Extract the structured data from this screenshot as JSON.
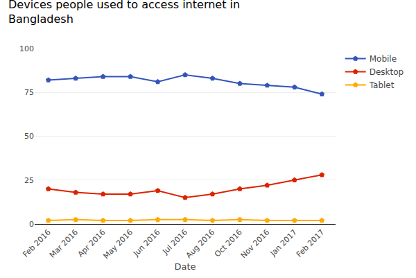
{
  "chart_data": {
    "type": "line",
    "title": "Devices people used to access internet in\nBangladesh",
    "xlabel": "Date",
    "categories": [
      "Feb 2016",
      "Mar 2016",
      "Apr 2016",
      "May 2016",
      "Jun 2016",
      "Jul 2016",
      "Aug 2016",
      "Oct 2016",
      "Nov 2016",
      "Jan 2017",
      "Feb 2017"
    ],
    "series": [
      {
        "name": "Mobile",
        "color": "#3355bb",
        "values": [
          82,
          83,
          84,
          84,
          81,
          85,
          83,
          80,
          79,
          78,
          74
        ]
      },
      {
        "name": "Desktop",
        "color": "#dd2200",
        "values": [
          20,
          18,
          17,
          17,
          19,
          15,
          17,
          20,
          22,
          25,
          28
        ]
      },
      {
        "name": "Tablet",
        "color": "#ffaa00",
        "values": [
          2,
          2.5,
          2,
          2,
          2.5,
          2.5,
          2,
          2.5,
          2,
          2,
          2
        ]
      }
    ],
    "marker": "pentagon",
    "ylim": [
      0,
      100
    ],
    "yticks": [
      0,
      25,
      50,
      75,
      100
    ],
    "grid": true,
    "legend": "upper right"
  }
}
